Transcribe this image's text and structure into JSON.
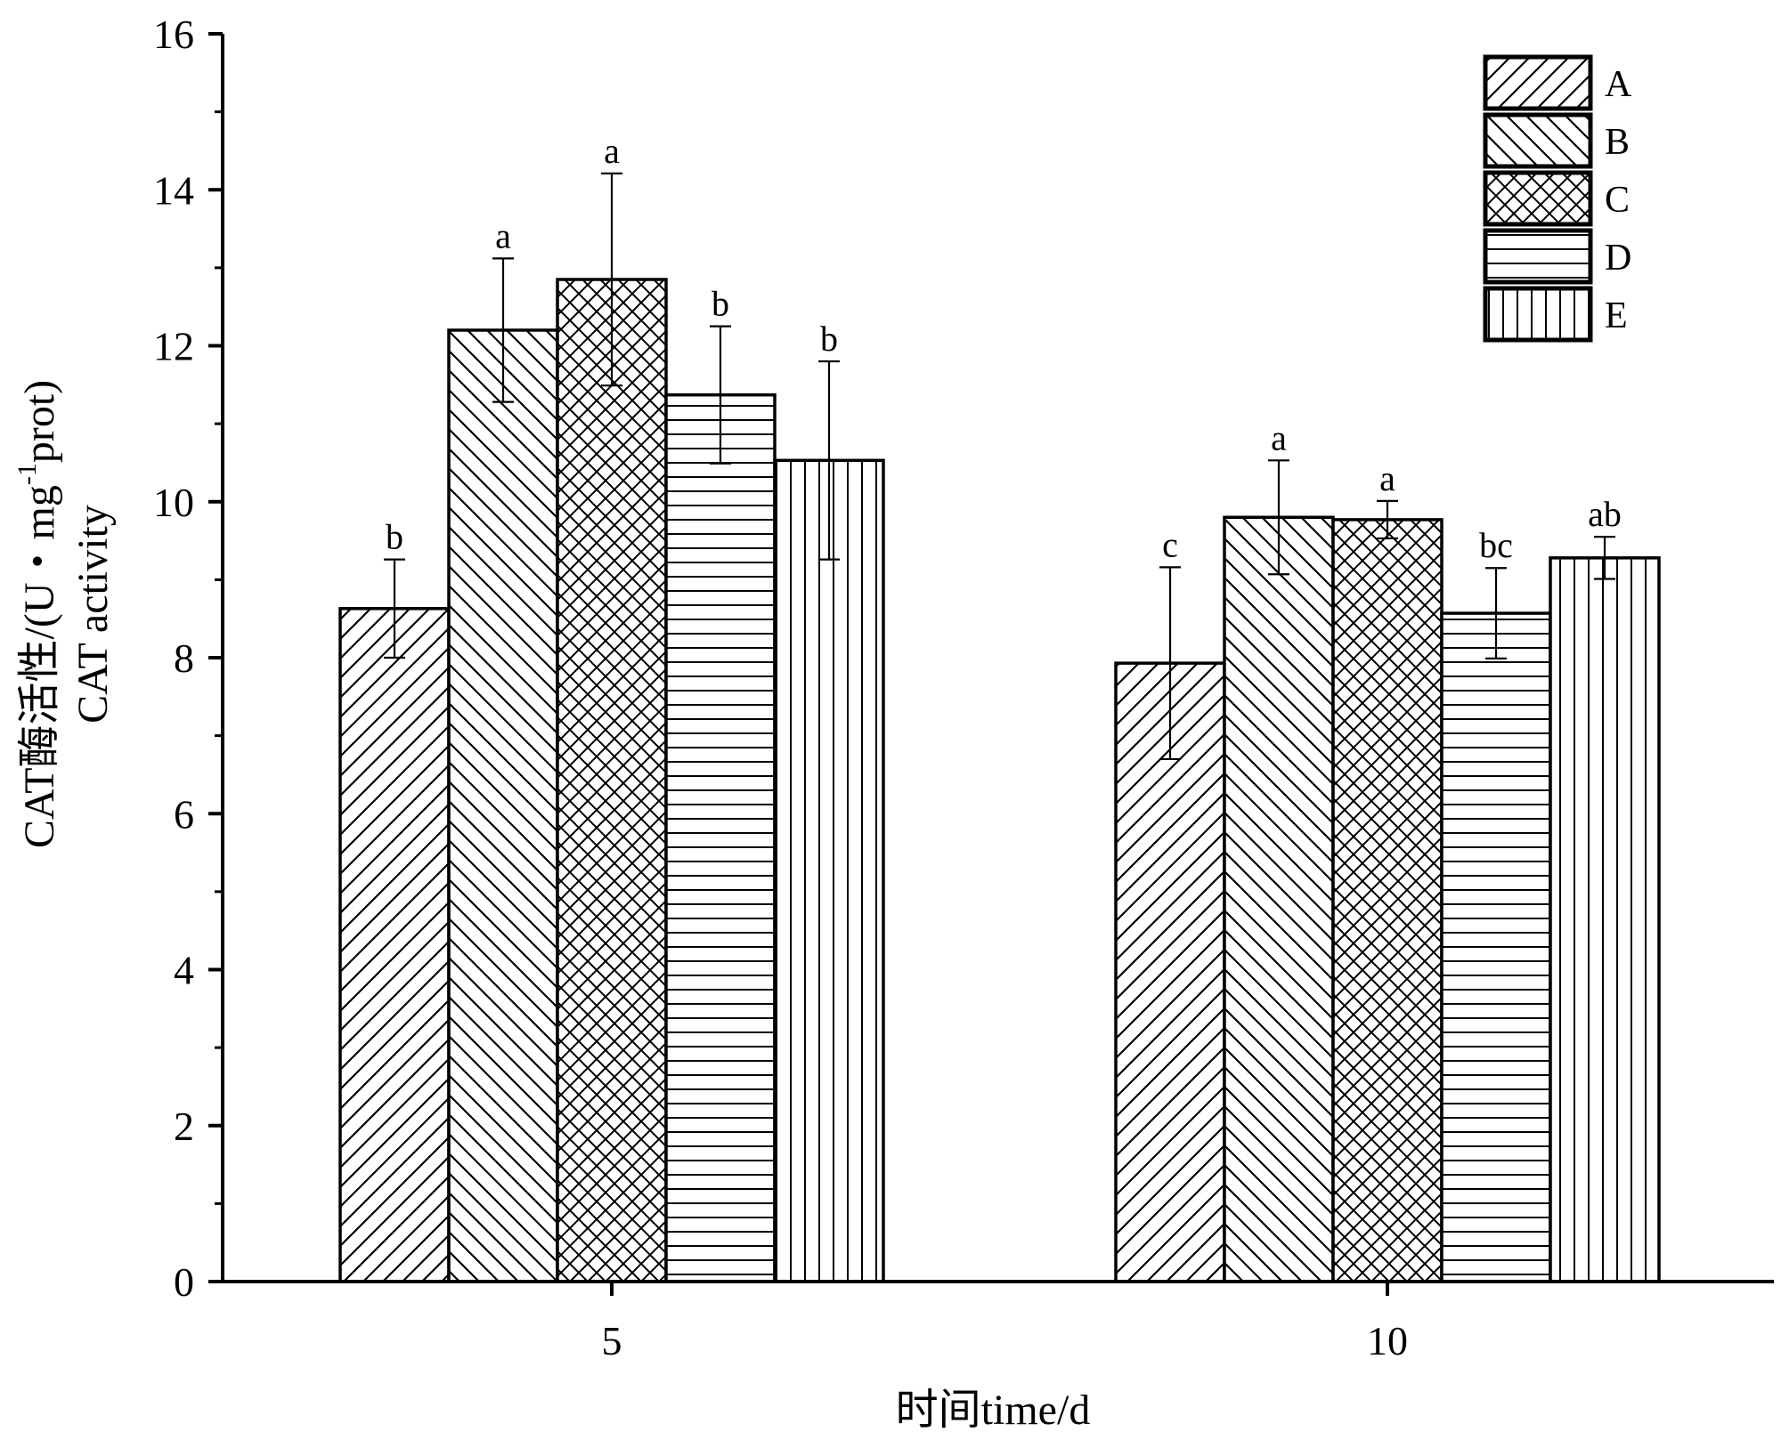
{
  "chart_data": {
    "type": "bar",
    "categories": [
      "5",
      "10"
    ],
    "series": [
      {
        "name": "A",
        "values": [
          8.63,
          7.93
        ],
        "errors": [
          0.63,
          1.23
        ],
        "letters": [
          "b",
          "c"
        ],
        "pattern": "diag-up"
      },
      {
        "name": "B",
        "values": [
          12.2,
          9.8
        ],
        "errors": [
          0.92,
          0.73
        ],
        "letters": [
          "a",
          "a"
        ],
        "pattern": "diag-down"
      },
      {
        "name": "C",
        "values": [
          12.85,
          9.77
        ],
        "errors": [
          1.36,
          0.24
        ],
        "letters": [
          "a",
          "a"
        ],
        "pattern": "crosshatch"
      },
      {
        "name": "D",
        "values": [
          11.37,
          8.57
        ],
        "errors": [
          0.88,
          0.58
        ],
        "letters": [
          "b",
          "bc"
        ],
        "pattern": "horizontal"
      },
      {
        "name": "E",
        "values": [
          10.53,
          9.28
        ],
        "errors": [
          1.27,
          0.27
        ],
        "letters": [
          "b",
          "ab"
        ],
        "pattern": "vertical"
      }
    ],
    "ylim": [
      0,
      16
    ],
    "yticks": [
      "0",
      "2",
      "4",
      "6",
      "8",
      "10",
      "12",
      "14",
      "16"
    ],
    "ylabel_line1": "CAT酶活性/(U・mg",
    "ylabel_sup": "-1",
    "ylabel_line1_end": "prot)",
    "ylabel_line2": "CAT activity",
    "xlabel": "时间time/d",
    "legend_position": "top-right",
    "grid": false,
    "colors": {
      "stroke": "#000000",
      "background": "#ffffff"
    }
  }
}
